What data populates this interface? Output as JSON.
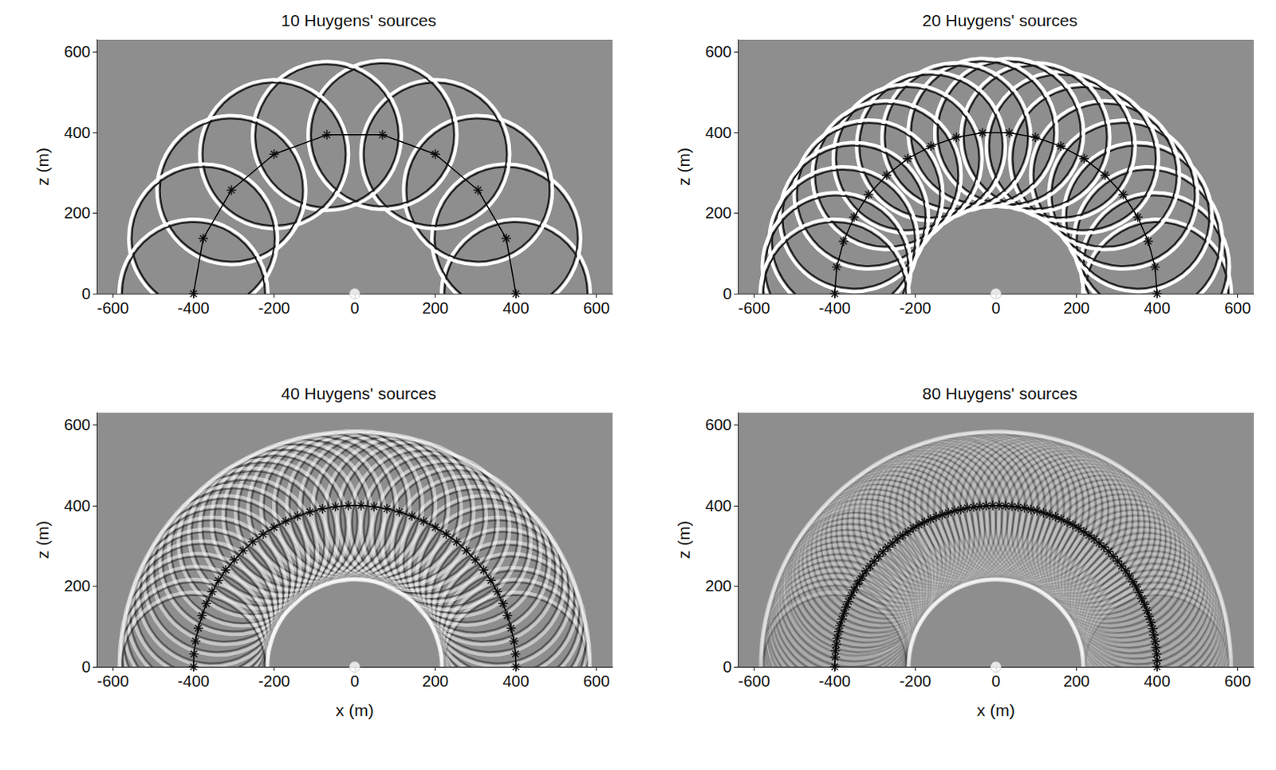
{
  "chart_data": [
    {
      "type": "scatter",
      "title": "10 Huygens' sources",
      "ylabel": "z (m)",
      "xlim": [
        -640,
        640
      ],
      "ylim": [
        0,
        630
      ],
      "xticks": [
        -600,
        -400,
        -200,
        0,
        200,
        400,
        600
      ],
      "yticks": [
        0,
        200,
        400,
        600
      ],
      "grid": false,
      "marker": "asterisk",
      "color": "#000000",
      "line_style": "solid",
      "wavefront_radius": 185,
      "point_source": [
        0,
        0
      ],
      "sources": [
        [
          400,
          0
        ],
        [
          376,
          137
        ],
        [
          306,
          257
        ],
        [
          200,
          346
        ],
        [
          69,
          394
        ],
        [
          -69,
          394
        ],
        [
          -200,
          346
        ],
        [
          -306,
          257
        ],
        [
          -376,
          137
        ],
        [
          -400,
          0
        ]
      ]
    },
    {
      "type": "scatter",
      "title": "20 Huygens' sources",
      "ylabel": "z (m)",
      "xlim": [
        -640,
        640
      ],
      "ylim": [
        0,
        630
      ],
      "xticks": [
        -600,
        -400,
        -200,
        0,
        200,
        400,
        600
      ],
      "yticks": [
        0,
        200,
        400,
        600
      ],
      "grid": false,
      "marker": "asterisk",
      "color": "#000000",
      "line_style": "solid",
      "wavefront_radius": 185,
      "point_source": [
        0,
        0
      ],
      "sources": [
        [
          400,
          0
        ],
        [
          395,
          66
        ],
        [
          378,
          130
        ],
        [
          352,
          190
        ],
        [
          316,
          246
        ],
        [
          271,
          294
        ],
        [
          219,
          335
        ],
        [
          161,
          366
        ],
        [
          98,
          388
        ],
        [
          33,
          399
        ],
        [
          -33,
          399
        ],
        [
          -98,
          388
        ],
        [
          -161,
          366
        ],
        [
          -219,
          335
        ],
        [
          -271,
          294
        ],
        [
          -316,
          246
        ],
        [
          -352,
          190
        ],
        [
          -378,
          130
        ],
        [
          -395,
          66
        ],
        [
          -400,
          0
        ]
      ]
    },
    {
      "type": "scatter",
      "title": "40 Huygens' sources",
      "ylabel": "z (m)",
      "xlabel": "x (m)",
      "xlim": [
        -640,
        640
      ],
      "ylim": [
        0,
        630
      ],
      "xticks": [
        -600,
        -400,
        -200,
        0,
        200,
        400,
        600
      ],
      "yticks": [
        0,
        200,
        400,
        600
      ],
      "grid": false,
      "marker": "asterisk",
      "color": "#000000",
      "line_style": "solid",
      "wavefront_radius": 185,
      "point_source": [
        0,
        0
      ],
      "sources": [
        [
          400,
          0
        ],
        [
          399,
          32
        ],
        [
          395,
          64
        ],
        [
          388,
          96
        ],
        [
          379,
          127
        ],
        [
          368,
          157
        ],
        [
          354,
          186
        ],
        [
          338,
          214
        ],
        [
          320,
          240
        ],
        [
          299,
          265
        ],
        [
          277,
          288
        ],
        [
          253,
          310
        ],
        [
          227,
          329
        ],
        [
          200,
          346
        ],
        [
          171,
          361
        ],
        [
          142,
          374
        ],
        [
          111,
          384
        ],
        [
          80,
          392
        ],
        [
          48,
          397
        ],
        [
          16,
          400
        ],
        [
          -16,
          400
        ],
        [
          -48,
          397
        ],
        [
          -80,
          392
        ],
        [
          -111,
          384
        ],
        [
          -142,
          374
        ],
        [
          -171,
          361
        ],
        [
          -200,
          346
        ],
        [
          -227,
          329
        ],
        [
          -253,
          310
        ],
        [
          -277,
          288
        ],
        [
          -299,
          265
        ],
        [
          -320,
          240
        ],
        [
          -338,
          214
        ],
        [
          -354,
          186
        ],
        [
          -368,
          157
        ],
        [
          -379,
          127
        ],
        [
          -388,
          96
        ],
        [
          -395,
          64
        ],
        [
          -399,
          32
        ],
        [
          -400,
          0
        ]
      ]
    },
    {
      "type": "scatter",
      "title": "80 Huygens' sources",
      "ylabel": "z (m)",
      "xlabel": "x (m)",
      "xlim": [
        -640,
        640
      ],
      "ylim": [
        0,
        630
      ],
      "xticks": [
        -600,
        -400,
        -200,
        0,
        200,
        400,
        600
      ],
      "yticks": [
        0,
        200,
        400,
        600
      ],
      "grid": false,
      "marker": "asterisk",
      "color": "#000000",
      "line_style": "solid",
      "wavefront_radius": 185,
      "point_source": [
        0,
        0
      ],
      "sources": [
        [
          400,
          0
        ],
        [
          400,
          16
        ],
        [
          399,
          32
        ],
        [
          397,
          48
        ],
        [
          395,
          63
        ],
        [
          392,
          79
        ],
        [
          389,
          95
        ],
        [
          385,
          110
        ],
        [
          380,
          125
        ],
        [
          375,
          140
        ],
        [
          369,
          155
        ],
        [
          362,
          169
        ],
        [
          355,
          184
        ],
        [
          348,
          198
        ],
        [
          340,
          211
        ],
        [
          331,
          225
        ],
        [
          322,
          238
        ],
        [
          312,
          250
        ],
        [
          302,
          262
        ],
        [
          291,
          274
        ],
        [
          280,
          286
        ],
        [
          268,
          297
        ],
        [
          256,
          307
        ],
        [
          244,
          317
        ],
        [
          231,
          326
        ],
        [
          218,
          335
        ],
        [
          205,
          344
        ],
        [
          191,
          352
        ],
        [
          177,
          359
        ],
        [
          162,
          366
        ],
        [
          148,
          372
        ],
        [
          133,
          377
        ],
        [
          118,
          382
        ],
        [
          102,
          387
        ],
        [
          87,
          390
        ],
        [
          71,
          394
        ],
        [
          55,
          396
        ],
        [
          40,
          398
        ],
        [
          24,
          399
        ],
        [
          8,
          400
        ],
        [
          -8,
          400
        ],
        [
          -24,
          399
        ],
        [
          -40,
          398
        ],
        [
          -55,
          396
        ],
        [
          -71,
          394
        ],
        [
          -87,
          390
        ],
        [
          -102,
          387
        ],
        [
          -118,
          382
        ],
        [
          -133,
          377
        ],
        [
          -148,
          372
        ],
        [
          -162,
          366
        ],
        [
          -177,
          359
        ],
        [
          -191,
          352
        ],
        [
          -205,
          344
        ],
        [
          -218,
          335
        ],
        [
          -231,
          326
        ],
        [
          -244,
          317
        ],
        [
          -256,
          307
        ],
        [
          -268,
          297
        ],
        [
          -280,
          286
        ],
        [
          -291,
          274
        ],
        [
          -302,
          262
        ],
        [
          -312,
          250
        ],
        [
          -322,
          238
        ],
        [
          -331,
          225
        ],
        [
          -338,
          214
        ],
        [
          -344,
          205
        ],
        [
          -352,
          191
        ],
        [
          -359,
          177
        ],
        [
          -366,
          162
        ],
        [
          -372,
          148
        ],
        [
          -377,
          133
        ],
        [
          -382,
          118
        ],
        [
          -387,
          102
        ],
        [
          -390,
          87
        ],
        [
          -394,
          71
        ],
        [
          -396,
          55
        ],
        [
          -398,
          40
        ],
        [
          -399,
          24
        ],
        [
          -400,
          0
        ]
      ]
    }
  ]
}
